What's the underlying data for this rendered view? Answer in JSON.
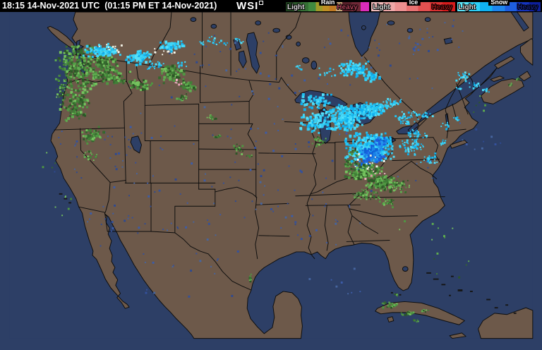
{
  "header": {
    "timestamp": "18:15 14-Nov-2021 UTC  (01:15 PM ET 14-Nov-2021)",
    "logo": "WSI",
    "legend": [
      {
        "label": "Rain",
        "light_label": "Light",
        "heavy_label": "Heavy",
        "heavy_color": "#b04058",
        "heavy_right": "14%",
        "stops": [
          [
            "#1e3f1e",
            0,
            9
          ],
          [
            "#2a562a",
            9,
            18
          ],
          [
            "#357035",
            18,
            27
          ],
          [
            "#3f8a3f",
            27,
            36
          ],
          [
            "#9e9a28",
            36,
            44
          ],
          [
            "#bf8f24",
            44,
            52
          ],
          [
            "#c07a22",
            52,
            60
          ],
          [
            "#c6a478",
            60,
            68
          ],
          [
            "#571f29",
            68,
            79
          ],
          [
            "#6e2836",
            79,
            90
          ],
          [
            "#da2cba",
            90,
            100
          ]
        ]
      },
      {
        "label": "Ice",
        "light_label": "Light",
        "heavy_label": "Heavy",
        "heavy_color": "#901414",
        "heavy_right": "3%",
        "stops": [
          [
            "#f2bcbc",
            0,
            14
          ],
          [
            "#f0a8a8",
            14,
            28
          ],
          [
            "#ec9090",
            28,
            42
          ],
          [
            "#e87272",
            42,
            56
          ],
          [
            "#e25050",
            56,
            70
          ],
          [
            "#dc3232",
            70,
            85
          ],
          [
            "#d61c1c",
            85,
            100
          ]
        ]
      },
      {
        "label": "Snow",
        "light_label": "Light",
        "heavy_label": "Heavy",
        "heavy_color": "#131f7a",
        "heavy_right": "3%",
        "stops": [
          [
            "#5ce7fa",
            0,
            13
          ],
          [
            "#2ed0f7",
            13,
            27
          ],
          [
            "#10b2f2",
            27,
            42
          ],
          [
            "#1e86ee",
            42,
            57
          ],
          [
            "#1e5ee0",
            57,
            71
          ],
          [
            "#1534be",
            71,
            86
          ],
          [
            "#0d1f9a",
            86,
            100
          ]
        ]
      }
    ]
  },
  "map": {
    "colors": {
      "ocean": "#2d3f66",
      "land": "#6d594a",
      "outline": "#0d0d0d"
    },
    "precip": {
      "palettes": {
        "r": [
          "#35682e",
          "#417f37",
          "#4f9742",
          "#5fae50",
          "#74c25e",
          "#2c5726"
        ],
        "s": [
          "#3fd6f7",
          "#22c4f3",
          "#0fb0ee",
          "#55e0fa",
          "#35cdf5"
        ],
        "h": [
          "#1b85e9",
          "#0f63d6",
          "#2795ec",
          "#1b5ce0"
        ],
        "i": [
          "#f0a8c0",
          "#eb93ae",
          "#f6bccd"
        ],
        "w": [
          "#f2f2e6",
          "#e8ecd8",
          "#fcfcf2"
        ],
        "c": [
          "#3c5ca8",
          "#34519c",
          "#46659f",
          "#2e4a92"
        ]
      },
      "clusters": [
        [
          210,
          250,
          140,
          110,
          48,
          2,
          "c"
        ],
        [
          400,
          200,
          120,
          95,
          42,
          2,
          "c"
        ],
        [
          320,
          95,
          140,
          70,
          40,
          2,
          "c"
        ],
        [
          545,
          75,
          110,
          55,
          30,
          2,
          "c"
        ],
        [
          255,
          375,
          110,
          75,
          26,
          2,
          "c"
        ],
        [
          450,
          320,
          95,
          55,
          22,
          2,
          "c"
        ],
        [
          625,
          60,
          70,
          38,
          16,
          2,
          "c"
        ],
        [
          155,
          315,
          70,
          55,
          13,
          2,
          "c"
        ],
        [
          675,
          195,
          55,
          38,
          10,
          2,
          "c"
        ],
        [
          350,
          295,
          75,
          55,
          18,
          2,
          "c"
        ],
        [
          480,
          420,
          60,
          30,
          8,
          2,
          "c"
        ],
        [
          600,
          250,
          40,
          30,
          8,
          2,
          "c"
        ],
        [
          170,
          200,
          60,
          40,
          12,
          2,
          "c"
        ],
        [
          90,
          220,
          30,
          60,
          8,
          2,
          "c"
        ],
        [
          104,
          96,
          40,
          36,
          260,
          3,
          "r"
        ],
        [
          96,
          150,
          24,
          28,
          110,
          3,
          "r"
        ],
        [
          120,
          196,
          18,
          14,
          50,
          3,
          "r"
        ],
        [
          76,
          128,
          10,
          26,
          36,
          2,
          "r"
        ],
        [
          140,
          90,
          18,
          14,
          60,
          3,
          "r"
        ],
        [
          118,
          226,
          12,
          8,
          18,
          2,
          "r"
        ],
        [
          134,
          72,
          30,
          11,
          80,
          3,
          "s"
        ],
        [
          188,
          82,
          24,
          12,
          70,
          3,
          "s"
        ],
        [
          236,
          66,
          24,
          9,
          50,
          3,
          "s"
        ],
        [
          214,
          94,
          13,
          7,
          22,
          2,
          "s"
        ],
        [
          298,
          60,
          28,
          9,
          20,
          2,
          "s"
        ],
        [
          338,
          57,
          12,
          5,
          8,
          2,
          "s"
        ],
        [
          152,
          70,
          22,
          7,
          10,
          2,
          "w"
        ],
        [
          228,
          74,
          18,
          7,
          8,
          2,
          "w"
        ],
        [
          250,
          92,
          10,
          6,
          12,
          2,
          "s"
        ],
        [
          150,
          110,
          28,
          17,
          80,
          3,
          "r"
        ],
        [
          190,
          122,
          20,
          11,
          45,
          3,
          "r"
        ],
        [
          237,
          106,
          20,
          15,
          85,
          3,
          "r"
        ],
        [
          260,
          124,
          13,
          9,
          35,
          3,
          "r"
        ],
        [
          253,
          143,
          10,
          7,
          20,
          2,
          "r"
        ],
        [
          247,
          118,
          8,
          6,
          6,
          2,
          "i"
        ],
        [
          297,
          171,
          9,
          6,
          14,
          2,
          "r"
        ],
        [
          304,
          199,
          7,
          5,
          10,
          2,
          "r"
        ],
        [
          336,
          217,
          9,
          9,
          20,
          2,
          "r"
        ],
        [
          352,
          227,
          5,
          3,
          6,
          2,
          "r"
        ],
        [
          504,
          99,
          24,
          13,
          80,
          3,
          "s"
        ],
        [
          530,
          111,
          13,
          7,
          28,
          3,
          "s"
        ],
        [
          463,
          104,
          14,
          7,
          12,
          2,
          "s"
        ],
        [
          424,
          97,
          7,
          4,
          6,
          2,
          "s"
        ],
        [
          449,
          147,
          26,
          12,
          55,
          3,
          "s"
        ],
        [
          447,
          177,
          24,
          17,
          85,
          3,
          "s"
        ],
        [
          454,
          204,
          13,
          9,
          26,
          2,
          "r"
        ],
        [
          491,
          171,
          32,
          20,
          240,
          3,
          "s"
        ],
        [
          529,
          159,
          26,
          13,
          120,
          3,
          "s"
        ],
        [
          560,
          149,
          17,
          7,
          32,
          2,
          "s"
        ],
        [
          582,
          171,
          22,
          11,
          45,
          2,
          "s"
        ],
        [
          608,
          167,
          13,
          7,
          16,
          2,
          "s"
        ],
        [
          527,
          214,
          38,
          24,
          400,
          3,
          "s"
        ],
        [
          531,
          223,
          19,
          13,
          150,
          3,
          "h"
        ],
        [
          519,
          241,
          15,
          9,
          55,
          3,
          "h"
        ],
        [
          543,
          207,
          14,
          8,
          40,
          3,
          "h"
        ],
        [
          590,
          214,
          26,
          15,
          60,
          2,
          "s"
        ],
        [
          616,
          231,
          15,
          9,
          26,
          2,
          "s"
        ],
        [
          597,
          195,
          18,
          9,
          30,
          2,
          "s"
        ],
        [
          638,
          208,
          8,
          5,
          8,
          2,
          "s"
        ],
        [
          519,
          250,
          32,
          13,
          140,
          3,
          "r"
        ],
        [
          545,
          266,
          24,
          13,
          110,
          3,
          "r"
        ],
        [
          521,
          284,
          26,
          9,
          60,
          2,
          "r"
        ],
        [
          554,
          295,
          13,
          7,
          26,
          2,
          "r"
        ],
        [
          572,
          270,
          15,
          11,
          40,
          2,
          "r"
        ],
        [
          499,
          238,
          11,
          7,
          26,
          2,
          "r"
        ],
        [
          504,
          221,
          9,
          7,
          18,
          2,
          "r"
        ],
        [
          526,
          238,
          28,
          16,
          12,
          2,
          "w"
        ],
        [
          538,
          253,
          22,
          9,
          7,
          2,
          "i"
        ],
        [
          641,
          184,
          11,
          7,
          9,
          2,
          "s"
        ],
        [
          654,
          171,
          9,
          5,
          7,
          2,
          "s"
        ],
        [
          666,
          111,
          12,
          8,
          20,
          2,
          "s"
        ],
        [
          681,
          125,
          9,
          6,
          12,
          2,
          "s"
        ],
        [
          698,
          132,
          7,
          4,
          6,
          2,
          "s"
        ],
        [
          659,
          129,
          5,
          3,
          5,
          2,
          "s"
        ],
        [
          734,
          123,
          7,
          4,
          6,
          2,
          "r"
        ],
        [
          744,
          114,
          5,
          3,
          4,
          2,
          "r"
        ],
        [
          555,
          447,
          17,
          6,
          30,
          2,
          "r"
        ],
        [
          584,
          458,
          13,
          4,
          18,
          2,
          "r"
        ],
        [
          608,
          455,
          9,
          3,
          9,
          2,
          "r"
        ],
        [
          567,
          431,
          7,
          3,
          5,
          2,
          "r"
        ],
        [
          596,
          469,
          7,
          3,
          6,
          2,
          "r"
        ],
        [
          352,
          407,
          3,
          9,
          10,
          2,
          "r"
        ],
        [
          618,
          344,
          50,
          35,
          8,
          2,
          "r"
        ],
        [
          648,
          390,
          40,
          25,
          6,
          2,
          "r"
        ],
        [
          88,
          298,
          28,
          35,
          6,
          2,
          "r"
        ],
        [
          56,
          238,
          16,
          25,
          4,
          2,
          "r"
        ],
        [
          688,
          148,
          25,
          18,
          6,
          2,
          "r"
        ]
      ]
    }
  }
}
